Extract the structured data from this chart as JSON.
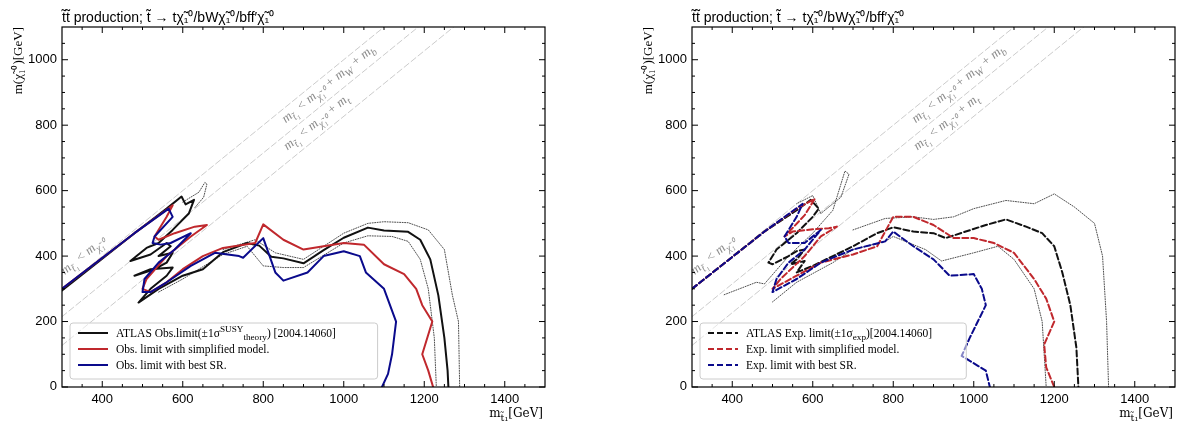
{
  "chart_data": [
    {
      "type": "line",
      "title": "t̃t̃ production; t̃ → tχ̃₁⁰/bWχ̃₁⁰/bff′χ̃₁⁰",
      "xlabel": "m$_{t̃₁}$[GeV]",
      "ylabel": "m(χ̃₁⁰)[GeV]",
      "xlim": [
        300,
        1500
      ],
      "ylim": [
        0,
        1100
      ],
      "xticks": [
        {
          "value": 350,
          "label": null
        },
        400,
        {
          "value": 450,
          "label": null
        },
        {
          "value": 500,
          "label": null
        },
        {
          "value": 550,
          "label": null
        },
        600,
        {
          "value": 650,
          "label": null
        },
        {
          "value": 700,
          "label": null
        },
        {
          "value": 750,
          "label": null
        },
        800,
        {
          "value": 850,
          "label": null
        },
        {
          "value": 900,
          "label": null
        },
        {
          "value": 950,
          "label": null
        },
        1000,
        {
          "value": 1050,
          "label": null
        },
        {
          "value": 1100,
          "label": null
        },
        {
          "value": 1150,
          "label": null
        },
        1200,
        {
          "value": 1250,
          "label": null
        },
        {
          "value": 1300,
          "label": null
        },
        {
          "value": 1350,
          "label": null
        },
        1400,
        {
          "value": 1450,
          "label": null
        }
      ],
      "yticks": [
        0,
        {
          "value": 50,
          "label": null
        },
        {
          "value": 100,
          "label": null
        },
        {
          "value": 150,
          "label": null
        },
        200,
        {
          "value": 250,
          "label": null
        },
        {
          "value": 300,
          "label": null
        },
        {
          "value": 350,
          "label": null
        },
        400,
        {
          "value": 450,
          "label": null
        },
        {
          "value": 500,
          "label": null
        },
        {
          "value": 550,
          "label": null
        },
        600,
        {
          "value": 650,
          "label": null
        },
        {
          "value": 700,
          "label": null
        },
        {
          "value": 750,
          "label": null
        },
        800,
        {
          "value": 850,
          "label": null
        },
        {
          "value": 900,
          "label": null
        },
        {
          "value": 950,
          "label": null
        },
        1000,
        {
          "value": 1050,
          "label": null
        }
      ],
      "legend": "bottom left",
      "series": [
        {
          "type": "line",
          "color": "#cccccc",
          "line_style": "dashed",
          "x": [
            300,
            1100
          ],
          "values": [
            300,
            1100
          ]
        },
        {
          "type": "line",
          "color": "#cccccc",
          "line_style": "dashed",
          "x": [
            300,
            1185
          ],
          "values": [
            215,
            1100
          ]
        },
        {
          "type": "line",
          "color": "#cccccc",
          "line_style": "dashed",
          "x": [
            300,
            1273
          ],
          "values": [
            127,
            1100
          ]
        },
        {
          "type": "line",
          "color": "#222222",
          "line_style": "dotted",
          "x": [
            600,
            640,
            655,
            660,
            652,
            630,
            null,
            540,
            600,
            700,
            760,
            800,
            850,
            900,
            1000,
            1060,
            1120,
            1160,
            1190,
            1210,
            1225,
            1230
          ],
          "values": [
            565,
            595,
            625,
            620,
            580,
            548,
            null,
            290,
            330,
            405,
            430,
            370,
            365,
            365,
            440,
            462,
            460,
            445,
            390,
            300,
            150,
            0
          ]
        },
        {
          "type": "line",
          "color": "#222222",
          "line_style": "dotted",
          "x": [
            700,
            780,
            830,
            900,
            1000,
            1060,
            1100,
            1160,
            1210,
            1250,
            1270,
            1285,
            1288
          ],
          "values": [
            420,
            450,
            410,
            390,
            470,
            500,
            505,
            502,
            480,
            420,
            280,
            200,
            0
          ]
        },
        {
          "type": "line",
          "name": "ATLAS  Obs.limit(±1σ$^{SUSY}$$_{theory}$) [2004.14060]",
          "color": "#111111",
          "line_style": "solid",
          "x": [
            300,
            400,
            480,
            560,
            597,
            607,
            628,
            615,
            575,
            540,
            510,
            480,
            470,
            520,
            560,
            570,
            540,
            575,
            560,
            530,
            480,
            520,
            575,
            560,
            520,
            490,
            540,
            600,
            650,
            700,
            760,
            790,
            820,
            850,
            900,
            950,
            1000,
            1060,
            1100,
            1160,
            1190,
            1215,
            1235,
            1250,
            1258,
            1260
          ],
          "values": [
            295,
            392,
            470,
            545,
            582,
            558,
            572,
            530,
            480,
            440,
            425,
            395,
            385,
            405,
            440,
            430,
            400,
            410,
            380,
            360,
            340,
            360,
            365,
            340,
            300,
            258,
            300,
            340,
            360,
            412,
            440,
            432,
            398,
            393,
            378,
            418,
            456,
            487,
            478,
            474,
            450,
            390,
            280,
            150,
            50,
            0
          ]
        },
        {
          "type": "line",
          "name": "Obs. limit with simplified model.",
          "color": "#c0282d",
          "line_style": "solid",
          "x": [
            300,
            480,
            575,
            560,
            530,
            540,
            580,
            630,
            660,
            620,
            560,
            510,
            500,
            520,
            560,
            600,
            650,
            700,
            780,
            800,
            850,
            900,
            1000,
            1050,
            1100,
            1150,
            1180,
            1195,
            1220,
            1195,
            1210,
            1222
          ],
          "values": [
            300,
            470,
            555,
            520,
            460,
            450,
            470,
            490,
            495,
            460,
            400,
            330,
            300,
            290,
            320,
            360,
            400,
            425,
            440,
            497,
            450,
            420,
            440,
            435,
            375,
            345,
            300,
            250,
            200,
            100,
            50,
            0
          ]
        },
        {
          "type": "line",
          "name": "Obs. limit with best SR.",
          "color": "#0a0a8c",
          "line_style": "solid",
          "x": [
            300,
            480,
            565,
            575,
            530,
            525,
            545,
            570,
            620,
            580,
            540,
            505,
            500,
            520,
            560,
            620,
            680,
            740,
            750,
            800,
            830,
            850,
            910,
            950,
            1000,
            1040,
            1055,
            1100,
            1130,
            1120,
            1110,
            1095
          ],
          "values": [
            300,
            470,
            545,
            520,
            460,
            440,
            435,
            440,
            470,
            420,
            380,
            330,
            290,
            290,
            320,
            370,
            410,
            400,
            395,
            455,
            350,
            325,
            350,
            400,
            415,
            400,
            350,
            300,
            200,
            100,
            40,
            0
          ]
        }
      ],
      "annotations": [
        "m$_{t̃₁}$ < m$_{χ̃₁⁰}$",
        "m$_{t̃₁}$ < m$_{χ̃₁⁰}$ + m$_{W}$ + m$_{b}$",
        "m$_{t̃₁}$ < m$_{χ̃₁⁰}$ + m$_{t}$"
      ]
    },
    {
      "type": "line",
      "title": "t̃t̃ production; t̃ → tχ̃₁⁰/bWχ̃₁⁰/bff′χ̃₁⁰",
      "xlabel": "m$_{t̃₁}$[GeV]",
      "ylabel": "m(χ̃₁⁰)[GeV]",
      "xlim": [
        300,
        1500
      ],
      "ylim": [
        0,
        1100
      ],
      "xticks": [
        {
          "value": 350,
          "label": null
        },
        400,
        {
          "value": 450,
          "label": null
        },
        {
          "value": 500,
          "label": null
        },
        {
          "value": 550,
          "label": null
        },
        600,
        {
          "value": 650,
          "label": null
        },
        {
          "value": 700,
          "label": null
        },
        {
          "value": 750,
          "label": null
        },
        800,
        {
          "value": 850,
          "label": null
        },
        {
          "value": 900,
          "label": null
        },
        {
          "value": 950,
          "label": null
        },
        1000,
        {
          "value": 1050,
          "label": null
        },
        {
          "value": 1100,
          "label": null
        },
        {
          "value": 1150,
          "label": null
        },
        1200,
        {
          "value": 1250,
          "label": null
        },
        {
          "value": 1300,
          "label": null
        },
        {
          "value": 1350,
          "label": null
        },
        1400,
        {
          "value": 1450,
          "label": null
        }
      ],
      "yticks": [
        0,
        {
          "value": 50,
          "label": null
        },
        {
          "value": 100,
          "label": null
        },
        {
          "value": 150,
          "label": null
        },
        200,
        {
          "value": 250,
          "label": null
        },
        {
          "value": 300,
          "label": null
        },
        {
          "value": 350,
          "label": null
        },
        400,
        {
          "value": 450,
          "label": null
        },
        {
          "value": 500,
          "label": null
        },
        {
          "value": 550,
          "label": null
        },
        600,
        {
          "value": 650,
          "label": null
        },
        {
          "value": 700,
          "label": null
        },
        {
          "value": 750,
          "label": null
        },
        800,
        {
          "value": 850,
          "label": null
        },
        {
          "value": 900,
          "label": null
        },
        {
          "value": 950,
          "label": null
        },
        1000,
        {
          "value": 1050,
          "label": null
        }
      ],
      "legend": "bottom left",
      "series": [
        {
          "type": "line",
          "color": "#cccccc",
          "line_style": "dashed",
          "x": [
            300,
            1100
          ],
          "values": [
            300,
            1100
          ]
        },
        {
          "type": "line",
          "color": "#cccccc",
          "line_style": "dashed",
          "x": [
            300,
            1185
          ],
          "values": [
            215,
            1100
          ]
        },
        {
          "type": "line",
          "color": "#cccccc",
          "line_style": "dashed",
          "x": [
            300,
            1273
          ],
          "values": [
            127,
            1100
          ]
        },
        {
          "type": "line",
          "color": "#222222",
          "line_style": "dotted",
          "x": [
            380,
            460,
            480,
            540,
            600,
            650,
            680,
            690,
            670,
            620,
            600,
            560,
            null,
            700,
            780,
            850,
            900,
            950,
            1000,
            1080,
            1150,
            1200,
            1250,
            1300,
            1320,
            1330,
            1335
          ],
          "values": [
            282,
            320,
            315,
            400,
            470,
            540,
            660,
            650,
            580,
            530,
            585,
            560,
            null,
            480,
            515,
            520,
            512,
            520,
            545,
            570,
            560,
            590,
            550,
            500,
            400,
            200,
            0
          ]
        },
        {
          "type": "line",
          "color": "#222222",
          "line_style": "dotted",
          "x": [
            500,
            560,
            650,
            700,
            780,
            800,
            880,
            920,
            1000,
            1060,
            1100,
            1150,
            1170,
            1180
          ],
          "values": [
            260,
            320,
            380,
            420,
            445,
            460,
            420,
            385,
            410,
            430,
            390,
            300,
            200,
            0
          ]
        },
        {
          "type": "line",
          "name": "ATLAS  Exp. limit(±1σ$_{exp}$)[2004.14060]",
          "color": "#111111",
          "line_style": "dashed",
          "x": [
            300,
            480,
            560,
            595,
            615,
            600,
            560,
            510,
            490,
            500,
            540,
            560,
            580,
            560,
            545,
            580,
            560,
            600,
            650,
            700,
            760,
            800,
            850,
            900,
            930,
            980,
            1030,
            1080,
            1130,
            1170,
            1200,
            1220,
            1240,
            1255,
            1260
          ],
          "values": [
            300,
            475,
            540,
            572,
            545,
            520,
            470,
            420,
            380,
            375,
            400,
            415,
            420,
            390,
            375,
            385,
            350,
            370,
            400,
            430,
            470,
            488,
            475,
            470,
            455,
            475,
            495,
            512,
            490,
            470,
            430,
            350,
            250,
            120,
            0
          ]
        },
        {
          "type": "line",
          "name": "Exp. limit with simplified model.",
          "color": "#c0282d",
          "line_style": "dashed",
          "x": [
            300,
            480,
            560,
            605,
            580,
            530,
            550,
            600,
            640,
            660,
            620,
            580,
            520,
            500,
            560,
            620,
            700,
            760,
            800,
            850,
            900,
            950,
            1000,
            1050,
            1100,
            1150,
            1180,
            1200,
            1175,
            1180,
            1200
          ],
          "values": [
            300,
            475,
            545,
            575,
            525,
            460,
            475,
            482,
            485,
            490,
            460,
            400,
            330,
            300,
            340,
            380,
            405,
            430,
            520,
            520,
            495,
            455,
            455,
            440,
            410,
            330,
            270,
            200,
            130,
            60,
            0
          ]
        },
        {
          "type": "line",
          "name": "Exp. limit with best SR.",
          "color": "#0a0a8c",
          "line_style": "dashed",
          "x": [
            300,
            480,
            575,
            560,
            530,
            540,
            580,
            620,
            580,
            540,
            510,
            500,
            560,
            620,
            700,
            780,
            800,
            850,
            900,
            940,
            1000,
            1020,
            1030,
            1010,
            990,
            970,
            1030,
            1040
          ],
          "values": [
            300,
            475,
            560,
            520,
            460,
            440,
            440,
            480,
            420,
            380,
            330,
            290,
            330,
            380,
            420,
            445,
            475,
            430,
            390,
            340,
            345,
            300,
            250,
            200,
            150,
            95,
            50,
            0
          ]
        }
      ],
      "annotations": [
        "m$_{t̃₁}$ < m$_{χ̃₁⁰}$",
        "m$_{t̃₁}$ < m$_{χ̃₁⁰}$ + m$_{W}$ + m$_{b}$",
        "m$_{t̃₁}$ < m$_{χ̃₁⁰}$ + m$_{t}$"
      ]
    }
  ]
}
